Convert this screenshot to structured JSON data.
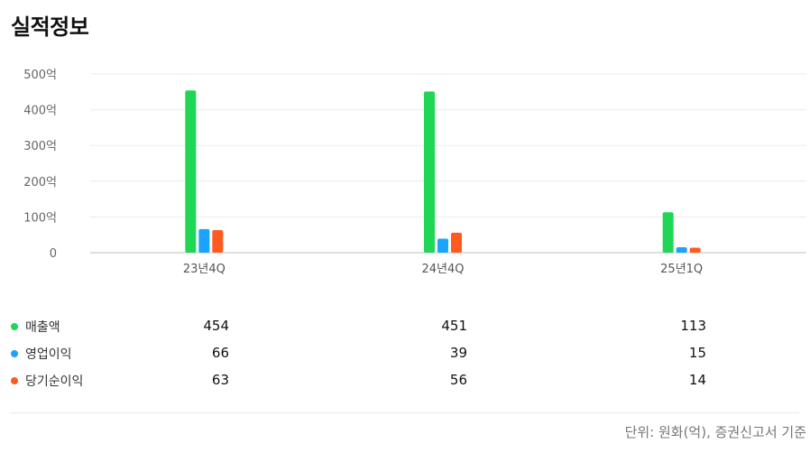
{
  "page": {
    "title": "실적정보"
  },
  "colors": {
    "매출액": "#1fd655",
    "영업이익": "#1aa3ff",
    "당기순이익": "#ff5a1f"
  },
  "chart_data": {
    "type": "bar",
    "categories": [
      "23년4Q",
      "24년4Q",
      "25년1Q"
    ],
    "series": [
      {
        "name": "매출액",
        "values": [
          454,
          451,
          113
        ]
      },
      {
        "name": "영업이익",
        "values": [
          66,
          39,
          15
        ]
      },
      {
        "name": "당기순이익",
        "values": [
          63,
          56,
          14
        ]
      }
    ],
    "ylim": [
      0,
      500
    ],
    "yticks": [
      0,
      100,
      200,
      300,
      400,
      500
    ],
    "ytick_labels": [
      "0",
      "100억",
      "200억",
      "300억",
      "400억",
      "500억"
    ],
    "grid": true,
    "legend_position": "bottom-left table"
  },
  "table": {
    "rows": [
      {
        "label": "매출액",
        "values": [
          "454",
          "451",
          "113"
        ]
      },
      {
        "label": "영업이익",
        "values": [
          "66",
          "39",
          "15"
        ]
      },
      {
        "label": "당기순이익",
        "values": [
          "63",
          "56",
          "14"
        ]
      }
    ]
  },
  "footnote": "단위: 원화(억), 증권신고서 기준"
}
